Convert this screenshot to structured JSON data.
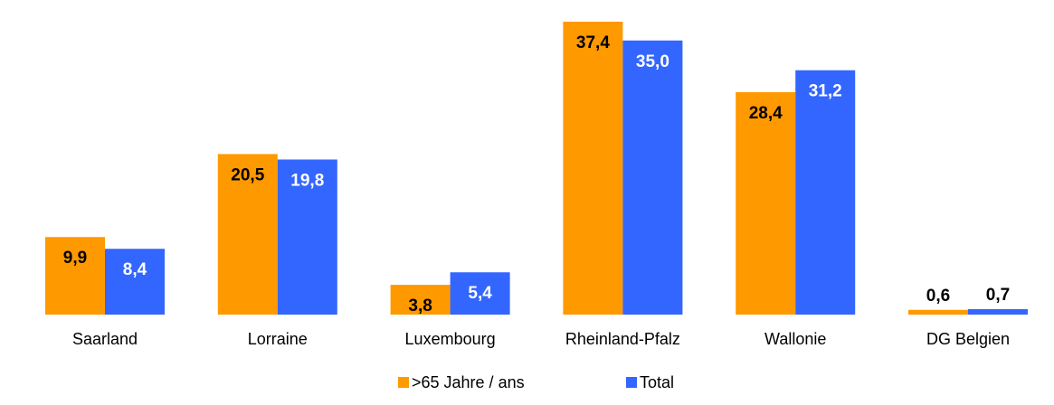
{
  "chart_data": {
    "type": "bar",
    "categories": [
      "Saarland",
      "Lorraine",
      "Luxembourg",
      "Rheinland-Pfalz",
      "Wallonie",
      "DG Belgien"
    ],
    "series": [
      {
        "name": ">65 Jahre / ans",
        "color": "#FF9900",
        "label_color": "#000000",
        "values": [
          9.9,
          20.5,
          3.8,
          37.4,
          28.4,
          0.6
        ],
        "labels": [
          "9,9",
          "20,5",
          "3,8",
          "37,4",
          "28,4",
          "0,6"
        ]
      },
      {
        "name": "Total",
        "color": "#3366FF",
        "label_color": "#ffffff",
        "values": [
          8.4,
          19.8,
          5.4,
          35.0,
          31.2,
          0.7
        ],
        "labels": [
          "8,4",
          "19,8",
          "5,4",
          "35,0",
          "31,2",
          "0,7"
        ]
      }
    ],
    "ylim": [
      0,
      37.4
    ],
    "grid": false,
    "legend_position": "bottom-center",
    "title": "",
    "xlabel": "",
    "ylabel": ""
  }
}
